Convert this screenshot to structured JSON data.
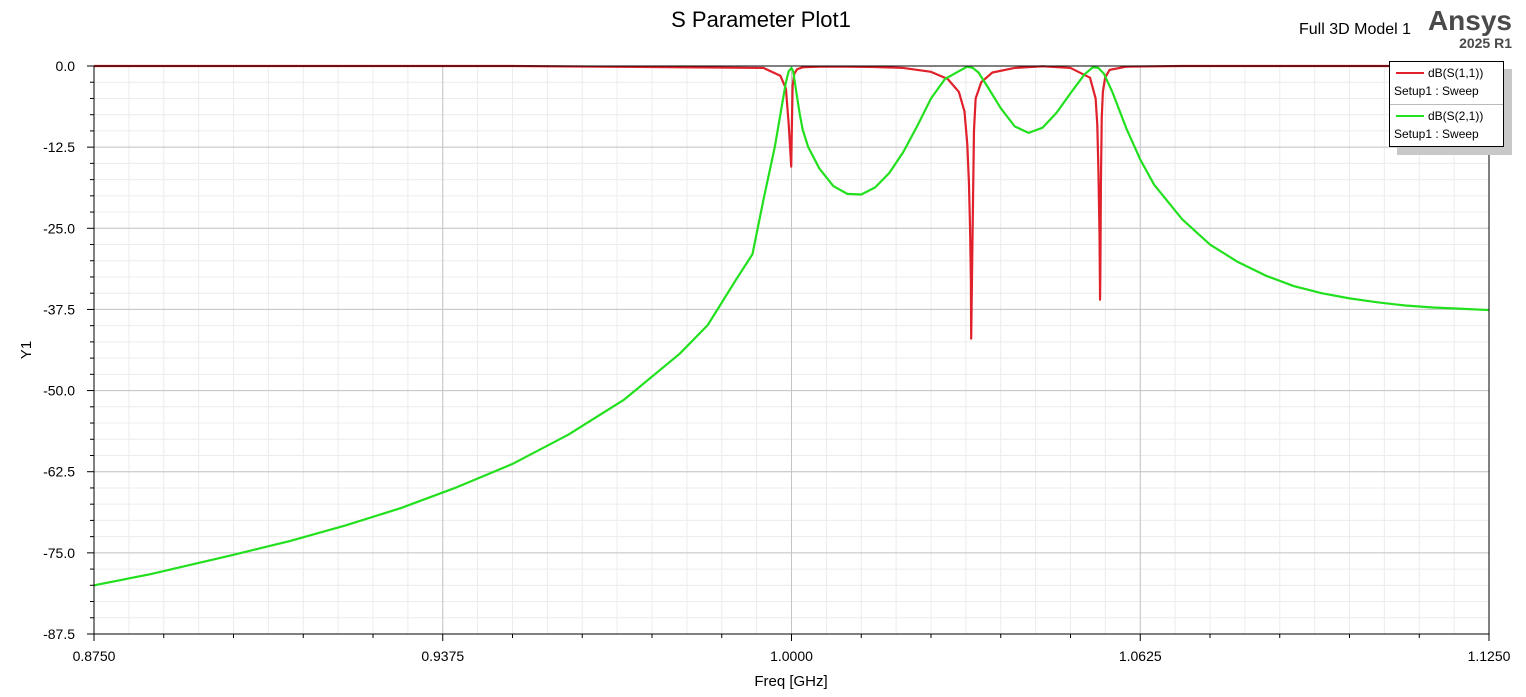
{
  "header": {
    "model": "Full 3D Model 1",
    "brand": "Ansys",
    "version": "2025 R1"
  },
  "chart_data": {
    "type": "line",
    "title": "S Parameter Plot1",
    "xlabel": "Freq [GHz]",
    "ylabel": "Y1",
    "xlim": [
      0.875,
      1.125
    ],
    "ylim": [
      -87.5,
      0
    ],
    "xticks": [
      0.875,
      0.9375,
      1.0,
      1.0625,
      1.125
    ],
    "xtick_labels": [
      "0.8750",
      "0.9375",
      "1.0000",
      "1.0625",
      "1.1250"
    ],
    "yticks": [
      0,
      -12.5,
      -25,
      -37.5,
      -50,
      -62.5,
      -75,
      -87.5
    ],
    "ytick_labels": [
      "0.0",
      "-12.5",
      "-25.0",
      "-37.5",
      "-50.0",
      "-62.5",
      "-75.0",
      "-87.5"
    ],
    "grid": true,
    "legend_position": "top-right",
    "series": [
      {
        "name": "dB(S(1,1))",
        "setup": "Setup1 : Sweep",
        "color": "#e0202a",
        "x": [
          0.875,
          0.95,
          0.995,
          0.998,
          0.999,
          0.9995,
          0.99985,
          0.99995,
          1.00005,
          1.0002,
          1.0005,
          1.001,
          1.002,
          1.005,
          1.01,
          1.015,
          1.02,
          1.025,
          1.028,
          1.03,
          1.031,
          1.0315,
          1.0318,
          1.032,
          1.03215,
          1.0322,
          1.0324,
          1.0327,
          1.033,
          1.034,
          1.036,
          1.04,
          1.045,
          1.05,
          1.0535,
          1.0545,
          1.0548,
          1.055,
          1.0552,
          1.0553,
          1.05535,
          1.05545,
          1.0556,
          1.0558,
          1.0562,
          1.057,
          1.06,
          1.07,
          1.09,
          1.125
        ],
        "y": [
          0,
          0,
          -0.3,
          -1.5,
          -3.5,
          -9,
          -14,
          -15.5,
          -10,
          -3,
          -1.2,
          -0.5,
          -0.2,
          -0.1,
          -0.1,
          -0.15,
          -0.3,
          -0.9,
          -2,
          -4,
          -7,
          -12,
          -18,
          -25,
          -33,
          -42,
          -29,
          -10,
          -5,
          -2.5,
          -1,
          -0.3,
          -0.05,
          -0.3,
          -1.8,
          -5,
          -9,
          -16,
          -26,
          -36,
          -32,
          -18,
          -8,
          -4,
          -1.8,
          -0.6,
          -0.1,
          0,
          0,
          0
        ]
      },
      {
        "name": "dB(S(2,1))",
        "setup": "Setup1 : Sweep",
        "color": "#22e01e",
        "x": [
          0.875,
          0.885,
          0.9,
          0.91,
          0.92,
          0.93,
          0.94,
          0.95,
          0.96,
          0.97,
          0.98,
          0.985,
          0.99,
          0.993,
          0.995,
          0.997,
          0.998,
          0.999,
          0.9995,
          1.0,
          1.0003,
          1.0006,
          1.001,
          1.0015,
          1.002,
          1.003,
          1.005,
          1.0075,
          1.01,
          1.0125,
          1.015,
          1.0175,
          1.02,
          1.0225,
          1.025,
          1.0275,
          1.03,
          1.0315,
          1.0325,
          1.0335,
          1.035,
          1.0375,
          1.04,
          1.0425,
          1.045,
          1.0475,
          1.05,
          1.0525,
          1.054,
          1.055,
          1.056,
          1.0575,
          1.06,
          1.0625,
          1.065,
          1.07,
          1.075,
          1.08,
          1.085,
          1.09,
          1.095,
          1.1,
          1.105,
          1.11,
          1.115,
          1.12,
          1.125
        ],
        "y": [
          -80,
          -78.3,
          -75.3,
          -73.2,
          -70.8,
          -68.1,
          -64.9,
          -61.3,
          -56.8,
          -51.4,
          -44.3,
          -39.9,
          -33,
          -29,
          -20.5,
          -12.5,
          -7.5,
          -2.5,
          -0.8,
          -0.3,
          -0.8,
          -2.5,
          -4.8,
          -7.5,
          -9.8,
          -12.5,
          -15.8,
          -18.5,
          -19.7,
          -19.8,
          -18.7,
          -16.5,
          -13.3,
          -9.3,
          -5,
          -2,
          -0.8,
          -0.1,
          -0.3,
          -1,
          -3,
          -6.5,
          -9.3,
          -10.3,
          -9.5,
          -7.2,
          -4.2,
          -1.3,
          -0.2,
          -0.3,
          -1.2,
          -4,
          -9.6,
          -14.4,
          -18.3,
          -23.6,
          -27.5,
          -30.2,
          -32.3,
          -33.9,
          -35,
          -35.8,
          -36.4,
          -36.9,
          -37.2,
          -37.4,
          -37.6
        ]
      }
    ]
  }
}
